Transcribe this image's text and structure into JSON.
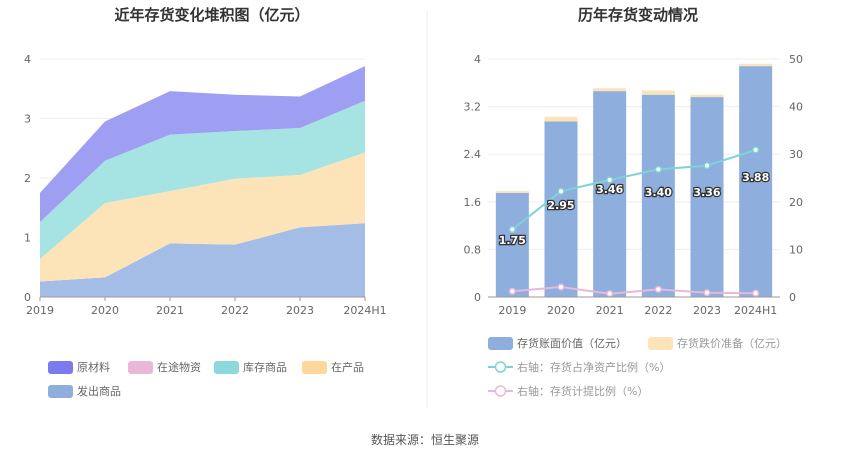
{
  "chart_data": [
    {
      "type": "area",
      "stacked": true,
      "title": "近年存货变化堆积图（亿元）",
      "categories": [
        "2019",
        "2020",
        "2021",
        "2022",
        "2023",
        "2024H1"
      ],
      "ylim": [
        0,
        4
      ],
      "yticks": [
        "0",
        "1",
        "2",
        "3",
        "4"
      ],
      "grid": true,
      "legend_position": "bottom",
      "series": [
        {
          "name": "发出商品",
          "values": [
            0.26,
            0.33,
            0.9,
            0.88,
            1.17,
            1.24
          ],
          "color": "#a4bde6"
        },
        {
          "name": "在产品",
          "values": [
            0.38,
            1.25,
            0.88,
            1.11,
            0.88,
            1.19
          ],
          "color": "#fde4b8"
        },
        {
          "name": "库存商品",
          "values": [
            0.62,
            0.71,
            0.95,
            0.8,
            0.79,
            0.87
          ],
          "color": "#a6e3e3"
        },
        {
          "name": "在途物资",
          "values": [
            0.0,
            0.0,
            0.0,
            0.0,
            0.0,
            0.0
          ],
          "color": "#e9b8d9"
        },
        {
          "name": "原材料",
          "values": [
            0.49,
            0.66,
            0.73,
            0.61,
            0.53,
            0.58
          ],
          "color": "#9e9ef2"
        }
      ],
      "legend_order": [
        "原材料",
        "在途物资",
        "库存商品",
        "在产品",
        "发出商品"
      ],
      "legend_colors": {
        "原材料": "#7b7bef",
        "在途物资": "#e9b8d9",
        "库存商品": "#8cd9dc",
        "在产品": "#fcd99b",
        "发出商品": "#8eaedd"
      }
    },
    {
      "type": "bar",
      "title": "历年存货变动情况",
      "categories": [
        "2019",
        "2020",
        "2021",
        "2022",
        "2023",
        "2024H1"
      ],
      "ylim": [
        0,
        4
      ],
      "yticks": [
        "0",
        "0.8",
        "1.6",
        "2.4",
        "3.2",
        "4"
      ],
      "y2lim": [
        0,
        50
      ],
      "y2ticks": [
        "0",
        "10",
        "20",
        "30",
        "40",
        "50"
      ],
      "legend_position": "bottom",
      "series": [
        {
          "name": "存货账面价值（亿元）",
          "values": [
            1.75,
            2.95,
            3.46,
            3.4,
            3.36,
            3.88
          ],
          "labels": [
            "1.75",
            "2.95",
            "3.46",
            "3.40",
            "3.36",
            "3.88"
          ],
          "color": "#8eaedd"
        },
        {
          "name": "存货跌价准备（亿元）",
          "values": [
            0.03,
            0.08,
            0.05,
            0.07,
            0.04,
            0.04
          ],
          "color": "#fde4b8"
        },
        {
          "name": "右轴：存货占净资产比例（%）",
          "axis": "right",
          "type": "line",
          "values": [
            14.2,
            22.2,
            24.6,
            26.8,
            27.6,
            30.9
          ],
          "color": "#7fd3d6"
        },
        {
          "name": "右轴：存货计提比例（%）",
          "axis": "right",
          "type": "line",
          "values": [
            1.2,
            2.1,
            0.7,
            1.6,
            0.9,
            0.8
          ],
          "color": "#e9b8d9"
        }
      ]
    }
  ],
  "source": "数据来源：恒生聚源"
}
